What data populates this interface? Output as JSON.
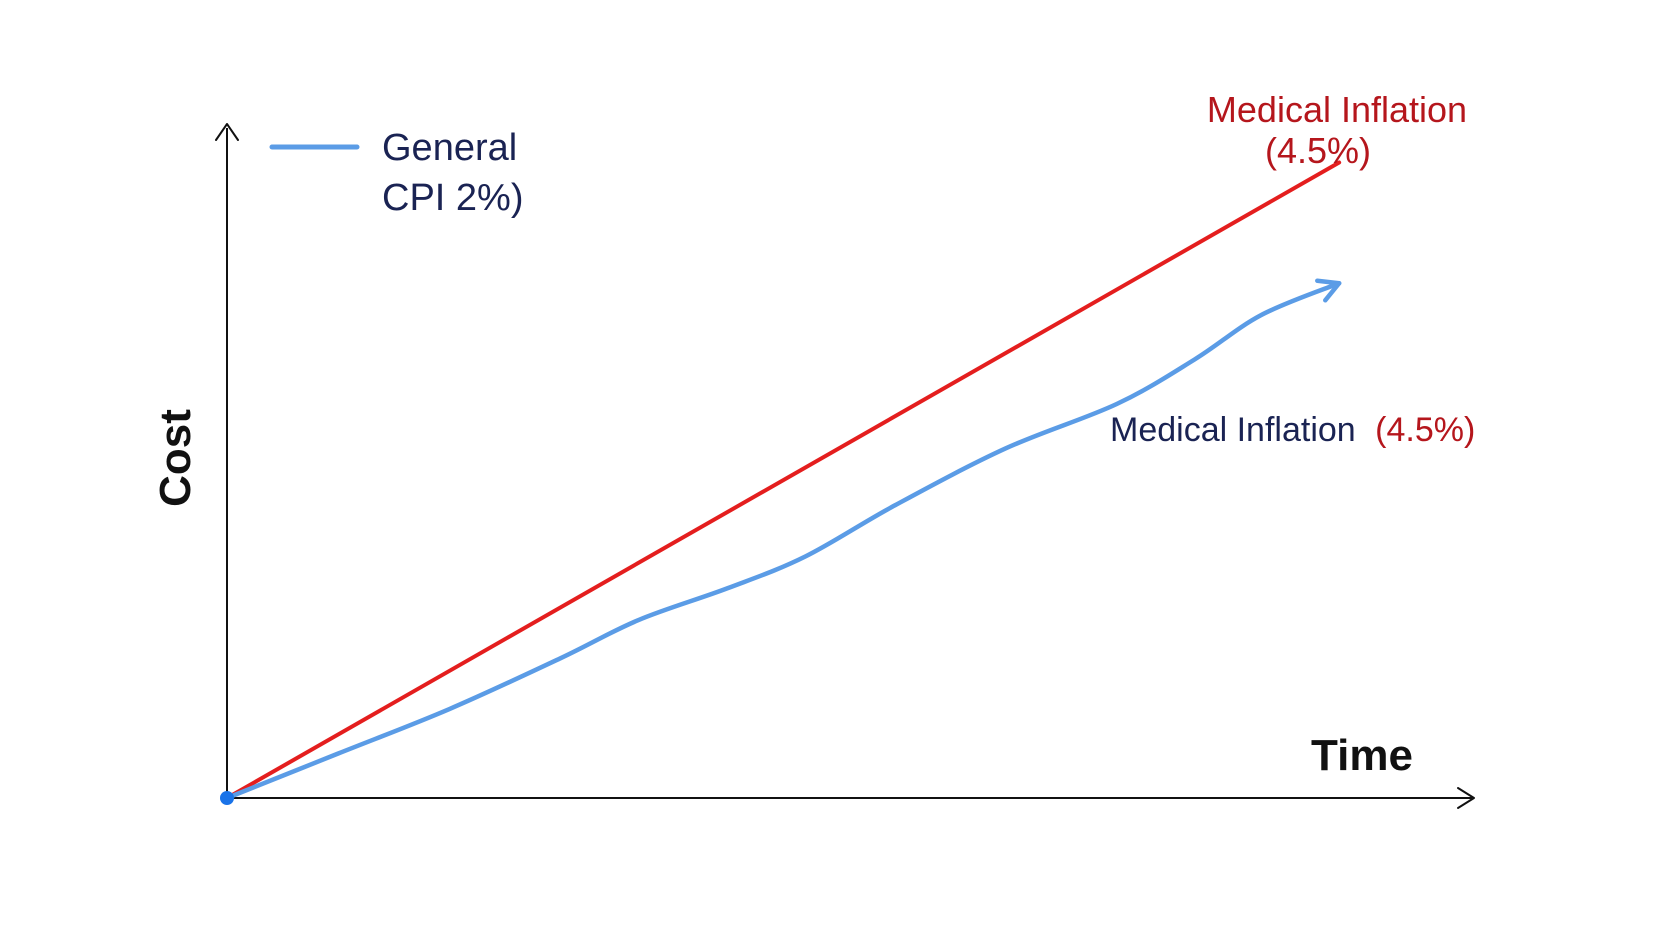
{
  "chart_data": {
    "type": "line",
    "title": "",
    "xlabel": "Time",
    "ylabel": "Cost",
    "grid": false,
    "legend_position": "top-left",
    "series": [
      {
        "name": "Medical Inflation (4.5%)",
        "color": "#e41e1e",
        "x": [
          0,
          1
        ],
        "values": [
          0,
          1
        ]
      },
      {
        "name": "General CPI 2%)",
        "color": "#5b9ce6",
        "x": [
          0,
          0.1,
          0.2,
          0.3,
          0.37,
          0.45,
          0.52,
          0.6,
          0.7,
          0.8,
          0.87,
          0.93,
          1.0
        ],
        "values": [
          0,
          0.07,
          0.14,
          0.22,
          0.28,
          0.33,
          0.38,
          0.46,
          0.55,
          0.62,
          0.69,
          0.76,
          0.81
        ]
      }
    ],
    "xlim": [
      0,
      1.07
    ],
    "ylim": [
      0,
      1.07
    ]
  },
  "labels": {
    "y_axis": "Cost",
    "x_axis": "Time",
    "legend_line1": "General",
    "legend_line2": "CPI 2%)",
    "red_annot_line1": "Medical Inflation",
    "red_annot_line2": "(4.5%)",
    "blue_annot_part1": "Medical Inflation",
    "blue_annot_part2": "(4.5%)"
  },
  "colors": {
    "red": "#e41e1e",
    "dark_red": "#b5161c",
    "blue": "#5b9ce6",
    "navy": "#1a2353",
    "origin": "#1a73e8"
  }
}
